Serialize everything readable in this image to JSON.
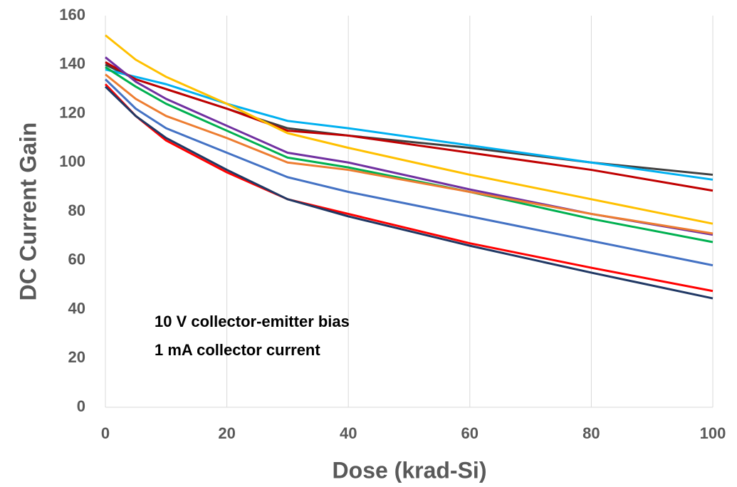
{
  "chart_data": {
    "type": "line",
    "x_label": "Dose (krad-Si)",
    "y_label": "DC Current Gain",
    "annotations": [
      "10 V collector-emitter bias",
      "1 mA collector current"
    ],
    "x": [
      0,
      5,
      10,
      20,
      30,
      40,
      60,
      80,
      100
    ],
    "series": [
      {
        "color": "#404040",
        "values": [
          140,
          134,
          130,
          122,
          114,
          111,
          106,
          100,
          95
        ]
      },
      {
        "color": "#00b0f0",
        "values": [
          138,
          135,
          132,
          124,
          117,
          114,
          107,
          100,
          93
        ]
      },
      {
        "color": "#c00000",
        "values": [
          141,
          134,
          130,
          122,
          113,
          111,
          104,
          97,
          88.5
        ]
      },
      {
        "color": "#ffc000",
        "values": [
          152,
          142,
          135,
          124,
          112,
          106,
          95,
          85,
          75
        ]
      },
      {
        "color": "#7030a0",
        "values": [
          143,
          133,
          126,
          115,
          104,
          100,
          89,
          79,
          70.5
        ]
      },
      {
        "color": "#00b050",
        "values": [
          139,
          131,
          124,
          113,
          102,
          98,
          88,
          77,
          67.5
        ]
      },
      {
        "color": "#ed7d31",
        "values": [
          136,
          126,
          119,
          110,
          100,
          97,
          88,
          79,
          71
        ]
      },
      {
        "color": "#4472c4",
        "values": [
          134,
          122,
          114,
          104,
          94,
          88,
          78,
          68,
          58
        ]
      },
      {
        "color": "#ff0000",
        "values": [
          132,
          119,
          109,
          96,
          85,
          79,
          67,
          57,
          47.5
        ]
      },
      {
        "color": "#203864",
        "values": [
          131,
          119,
          110,
          97,
          85,
          78,
          66,
          55,
          44.5
        ]
      }
    ],
    "xlim": [
      0,
      100
    ],
    "xticks": [
      0,
      20,
      40,
      60,
      80,
      100
    ],
    "ylim": [
      0,
      160
    ],
    "yticks": [
      0,
      20,
      40,
      60,
      80,
      100,
      120,
      140,
      160
    ],
    "grid": "x"
  }
}
